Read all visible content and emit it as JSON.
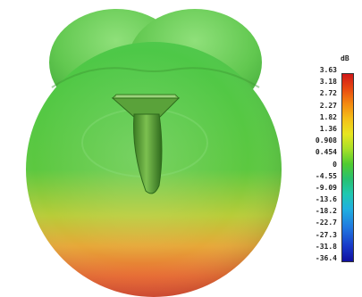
{
  "legend": {
    "unit": "dB",
    "ticks": [
      "3.63",
      "3.18",
      "2.72",
      "2.27",
      "1.82",
      "1.36",
      "0.908",
      "0.454",
      "0",
      "-4.55",
      "-9.09",
      "-13.6",
      "-18.2",
      "-22.7",
      "-27.3",
      "-31.8",
      "-36.4"
    ],
    "gradient_colors": [
      "#d01818",
      "#f48a10",
      "#e8e620",
      "#50cc30",
      "#20c8b0",
      "#2078e0",
      "#1010a0"
    ]
  },
  "pattern": {
    "lobe_color_top": "#7ad06a",
    "lobe_color_mid": "#48c040",
    "lobe_color_bottom": "#e06030",
    "antenna_color": "#4c8a30"
  }
}
